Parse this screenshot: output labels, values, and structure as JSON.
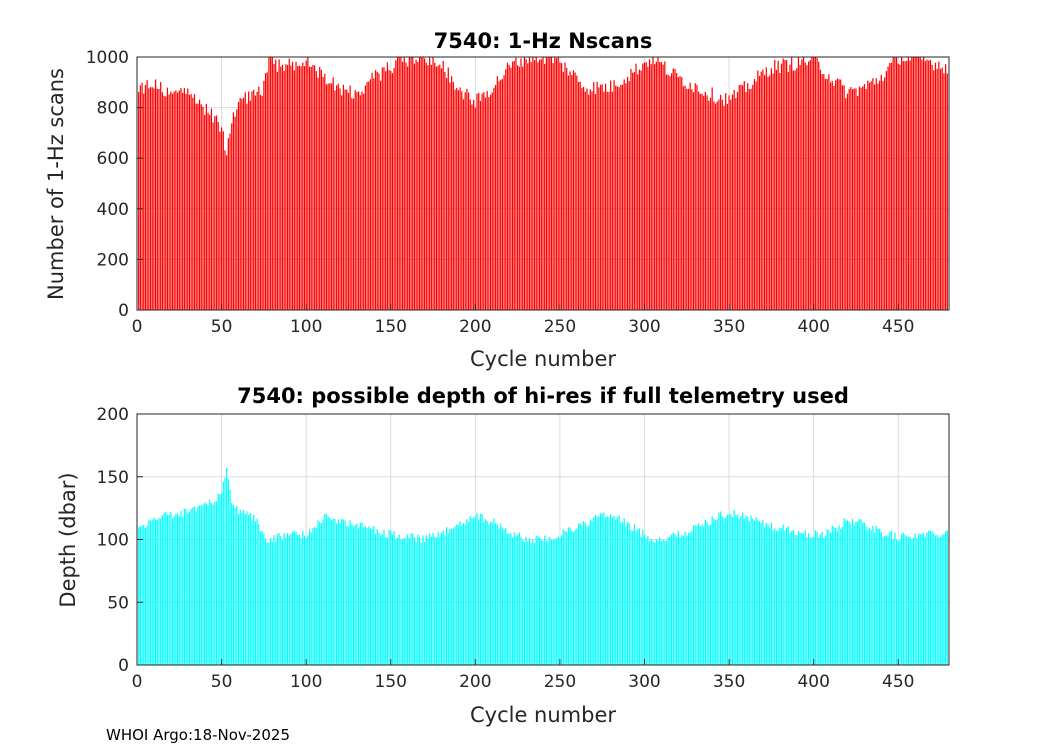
{
  "footer": {
    "text": "WHOI Argo:18-Nov-2025"
  },
  "chart_data": [
    {
      "type": "bar",
      "title": "7540: 1-Hz Nscans",
      "xlabel": "Cycle number",
      "ylabel": "Number of 1-Hz scans",
      "xlim": [
        0,
        480
      ],
      "ylim": [
        0,
        1000
      ],
      "xticks": [
        "0",
        "50",
        "100",
        "150",
        "200",
        "250",
        "300",
        "350",
        "400",
        "450"
      ],
      "yticks": [
        "0",
        "200",
        "400",
        "600",
        "800",
        "1000"
      ],
      "grid": true,
      "bar_color": "#ff0000",
      "x_start": 1,
      "x_step": 1,
      "keypoints": [
        [
          1,
          860
        ],
        [
          10,
          900
        ],
        [
          20,
          840
        ],
        [
          30,
          860
        ],
        [
          40,
          800
        ],
        [
          45,
          760
        ],
        [
          50,
          720
        ],
        [
          53,
          610
        ],
        [
          55,
          720
        ],
        [
          60,
          820
        ],
        [
          70,
          850
        ],
        [
          75,
          880
        ],
        [
          78,
          1000
        ],
        [
          85,
          960
        ],
        [
          100,
          980
        ],
        [
          110,
          930
        ],
        [
          120,
          880
        ],
        [
          130,
          850
        ],
        [
          140,
          920
        ],
        [
          150,
          960
        ],
        [
          160,
          990
        ],
        [
          170,
          1000
        ],
        [
          180,
          970
        ],
        [
          190,
          880
        ],
        [
          200,
          820
        ],
        [
          210,
          880
        ],
        [
          220,
          960
        ],
        [
          230,
          1000
        ],
        [
          245,
          1000
        ],
        [
          255,
          950
        ],
        [
          265,
          880
        ],
        [
          280,
          880
        ],
        [
          295,
          950
        ],
        [
          305,
          1000
        ],
        [
          315,
          940
        ],
        [
          325,
          900
        ],
        [
          340,
          850
        ],
        [
          350,
          830
        ],
        [
          360,
          880
        ],
        [
          375,
          960
        ],
        [
          385,
          970
        ],
        [
          400,
          990
        ],
        [
          410,
          920
        ],
        [
          420,
          860
        ],
        [
          430,
          880
        ],
        [
          440,
          920
        ],
        [
          450,
          1000
        ],
        [
          465,
          990
        ],
        [
          479,
          960
        ]
      ],
      "noise": 60
    },
    {
      "type": "bar",
      "title": "7540: possible depth of hi-res if full telemetry used",
      "xlabel": "Cycle number",
      "ylabel": "Depth (dbar)",
      "xlim": [
        0,
        480
      ],
      "ylim": [
        0,
        200
      ],
      "xticks": [
        "0",
        "50",
        "100",
        "150",
        "200",
        "250",
        "300",
        "350",
        "400",
        "450"
      ],
      "yticks": [
        "0",
        "50",
        "100",
        "150",
        "200"
      ],
      "grid": true,
      "bar_color": "#00ffff",
      "x_start": 1,
      "x_step": 1,
      "keypoints": [
        [
          1,
          108
        ],
        [
          10,
          118
        ],
        [
          20,
          120
        ],
        [
          30,
          122
        ],
        [
          40,
          128
        ],
        [
          45,
          130
        ],
        [
          50,
          138
        ],
        [
          53,
          160
        ],
        [
          56,
          132
        ],
        [
          60,
          122
        ],
        [
          70,
          116
        ],
        [
          77,
          100
        ],
        [
          90,
          104
        ],
        [
          100,
          104
        ],
        [
          110,
          118
        ],
        [
          120,
          114
        ],
        [
          130,
          112
        ],
        [
          140,
          108
        ],
        [
          150,
          104
        ],
        [
          160,
          102
        ],
        [
          170,
          100
        ],
        [
          180,
          104
        ],
        [
          190,
          112
        ],
        [
          200,
          120
        ],
        [
          210,
          114
        ],
        [
          220,
          106
        ],
        [
          230,
          100
        ],
        [
          245,
          100
        ],
        [
          255,
          108
        ],
        [
          265,
          112
        ],
        [
          275,
          120
        ],
        [
          285,
          116
        ],
        [
          295,
          108
        ],
        [
          305,
          100
        ],
        [
          315,
          102
        ],
        [
          325,
          106
        ],
        [
          335,
          112
        ],
        [
          345,
          120
        ],
        [
          355,
          120
        ],
        [
          365,
          116
        ],
        [
          375,
          110
        ],
        [
          385,
          108
        ],
        [
          395,
          104
        ],
        [
          405,
          104
        ],
        [
          415,
          110
        ],
        [
          420,
          116
        ],
        [
          430,
          112
        ],
        [
          440,
          106
        ],
        [
          450,
          102
        ],
        [
          465,
          104
        ],
        [
          479,
          106
        ]
      ],
      "noise": 7
    }
  ]
}
